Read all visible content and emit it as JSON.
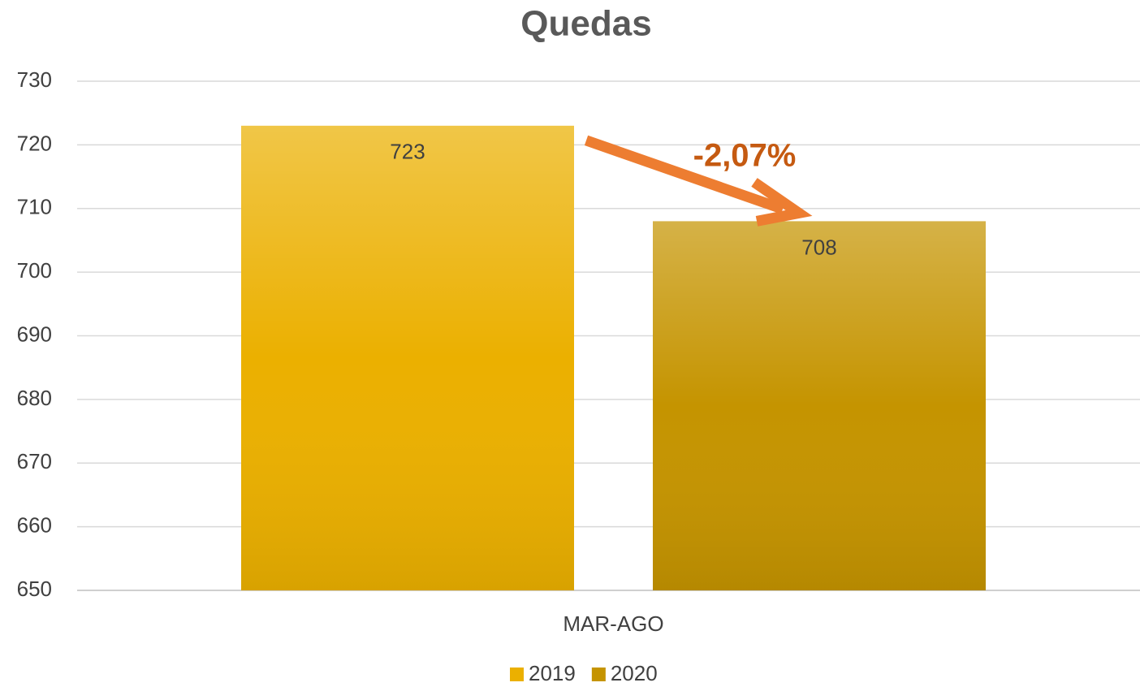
{
  "chart_data": {
    "type": "bar",
    "title": "Quedas",
    "categories": [
      "MAR-AGO"
    ],
    "series": [
      {
        "name": "2019",
        "color": "#ebb000",
        "values": [
          723
        ]
      },
      {
        "name": "2020",
        "color": "#c59400",
        "values": [
          708
        ]
      }
    ],
    "ylim": [
      650,
      730
    ],
    "yticks": [
      650,
      660,
      670,
      680,
      690,
      700,
      710,
      720,
      730
    ],
    "grid": true,
    "annotation": "-2,07%",
    "legend": "bottom"
  }
}
